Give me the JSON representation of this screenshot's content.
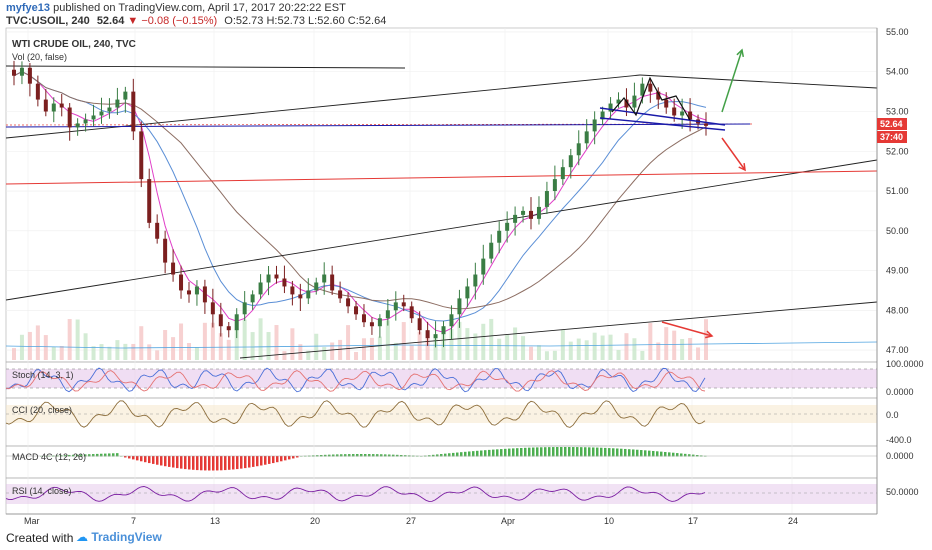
{
  "header": {
    "user": "myfye13",
    "published_text": "published on TradingView.com, April 17, 2017 20:22:22 EST",
    "symbol": "TVC:USOIL, 240",
    "last": "52.64",
    "change": "−0.08 (−0.15%)",
    "ohlc": "O:52.73 H:52.73 L:52.60 C:52.64"
  },
  "chart_labels": {
    "title": "WTI CRUDE OIL, 240, TVC",
    "vol_label": "Vol (20, false)",
    "price_badge": "52.64",
    "time_badge": "37:40"
  },
  "indicators": [
    {
      "label": "Stoch (14, 3, 1)",
      "levels": [
        "100.0000",
        "0.0000"
      ]
    },
    {
      "label": "CCI (20, close)",
      "levels": [
        "0.0",
        "-400.0"
      ]
    },
    {
      "label": "MACD 4C (12, 26)",
      "levels": [
        "0.0000"
      ]
    },
    {
      "label": "RSI (14, close)",
      "levels": [
        "50.0000"
      ]
    }
  ],
  "chart_data": {
    "type": "line",
    "title": "WTI CRUDE OIL, 240, TVC",
    "x_ticks": [
      "Mar",
      "7",
      "13",
      "20",
      "27",
      "Apr",
      "10",
      "17",
      "24"
    ],
    "y_ticks": [
      "55.00",
      "54.00",
      "53.00",
      "52.00",
      "51.00",
      "50.00",
      "49.00",
      "48.00",
      "47.00"
    ],
    "ylim": [
      46.7,
      55.1
    ],
    "series": [
      {
        "values": [
          53.9,
          54.1,
          53.7,
          53.3,
          53.0,
          53.2,
          53.1,
          52.6,
          52.7,
          52.8,
          52.9,
          53.0,
          53.1,
          53.3,
          53.5,
          52.5,
          51.3,
          50.2,
          49.8,
          49.2,
          48.9,
          48.5,
          48.4,
          48.6,
          48.2,
          47.9,
          47.6,
          47.5,
          47.9,
          48.2,
          48.4,
          48.7,
          48.9,
          48.8,
          48.6,
          48.4,
          48.3,
          48.5,
          48.7,
          48.9,
          48.5,
          48.3,
          48.1,
          47.9,
          47.7,
          47.6,
          47.8,
          48.0,
          48.2,
          48.1,
          47.8,
          47.5,
          47.3,
          47.4,
          47.6,
          47.9,
          48.3,
          48.6,
          48.9,
          49.3,
          49.7,
          50.0,
          50.2,
          50.4,
          50.5,
          50.3,
          50.6,
          51.0,
          51.3,
          51.6,
          51.9,
          52.2,
          52.5,
          52.8,
          53.0,
          53.2,
          53.3,
          53.1,
          53.4,
          53.7,
          53.5,
          53.3,
          53.1,
          52.9,
          53.0,
          52.8,
          52.7,
          52.64
        ]
      }
    ],
    "last_price": 52.64,
    "grid": true,
    "panels": [
      "price",
      "stoch",
      "cci",
      "macd",
      "rsi"
    ]
  },
  "footer": {
    "created_with": "Created with",
    "logo_text": "TradingView"
  },
  "colors": {
    "candle_up": "#3a7d44",
    "candle_down": "#7b1f1f",
    "ma_fast": "#e040c8",
    "ma_mid": "#5b8fd6",
    "ma_slow": "#8d6e63",
    "trend": "#222222",
    "support": "#e53935",
    "pattern": "#1a1aa8",
    "arrow_up": "#43a047",
    "arrow_down": "#e53935",
    "price_badge": "#e53935"
  }
}
